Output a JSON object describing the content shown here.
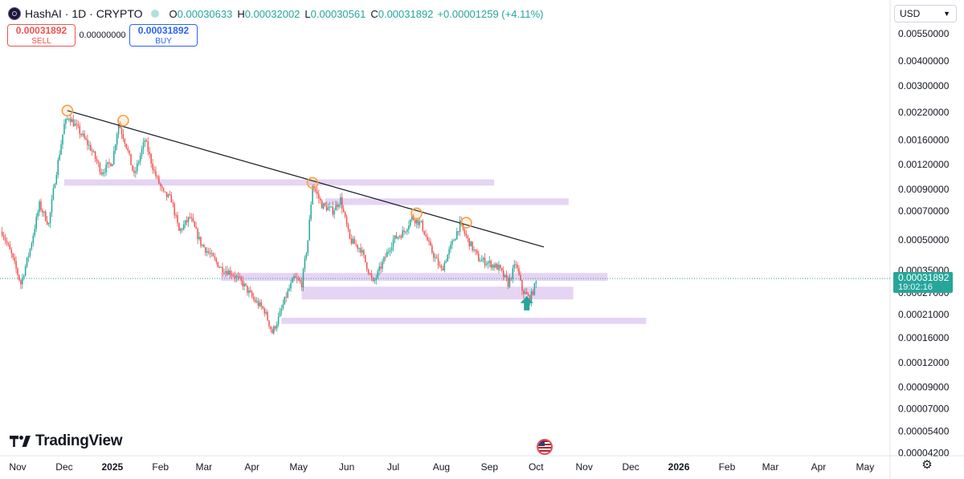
{
  "header": {
    "title": "HashAI · 1D · CRYPTO",
    "ohlc": [
      {
        "k": "O",
        "v": "0.00030633"
      },
      {
        "k": "H",
        "v": "0.00032002"
      },
      {
        "k": "L",
        "v": "0.00030561"
      },
      {
        "k": "C",
        "v": "0.00031892"
      }
    ],
    "change": "+0.00001259 (+4.11%)"
  },
  "trade": {
    "sell_price": "0.00031892",
    "sell_label": "SELL",
    "spread": "0.00000000",
    "buy_price": "0.00031892",
    "buy_label": "BUY"
  },
  "currency": "USD",
  "last_price": {
    "value": "0.00031892",
    "countdown": "19:02:16"
  },
  "brand": "TradingView",
  "colors": {
    "up": "#26a69a",
    "down": "#ef5350",
    "zone": "#e1cdf1",
    "trendline": "#131722",
    "marker": "#f5a142"
  },
  "chart_data": {
    "type": "candlestick",
    "symbol": "HashAI",
    "interval": "1D",
    "y_scale": "log",
    "yticks": [
      0.0055,
      0.004,
      0.003,
      0.0022,
      0.0016,
      0.0012,
      0.0009,
      0.0007,
      0.0005,
      0.00035,
      0.00027,
      0.00021,
      0.00016,
      0.00012,
      9e-05,
      7e-05,
      5.4e-05,
      4.2e-05
    ],
    "ytick_labels": [
      "0.00550000",
      "0.00400000",
      "0.00300000",
      "0.00220000",
      "0.00160000",
      "0.00120000",
      "0.00090000",
      "0.00070000",
      "0.00050000",
      "0.00035000",
      "0.00027000",
      "0.00021000",
      "0.00016000",
      "0.00012000",
      "0.00009000",
      "0.00007000",
      "0.00005400",
      "0.00004200"
    ],
    "xticks": [
      "Nov",
      "Dec",
      "2025",
      "Feb",
      "Mar",
      "Apr",
      "May",
      "Jun",
      "Jul",
      "Aug",
      "Sep",
      "Oct",
      "Nov",
      "Dec",
      "2026",
      "Feb",
      "Mar",
      "Apr",
      "May"
    ],
    "x_bold": [
      "2025",
      "2026"
    ],
    "price_path": [
      [
        "2024-10-22",
        0.00055
      ],
      [
        "2024-10-28",
        0.00042
      ],
      [
        "2024-11-03",
        0.0003
      ],
      [
        "2024-11-09",
        0.00045
      ],
      [
        "2024-11-15",
        0.00075
      ],
      [
        "2024-11-21",
        0.0006
      ],
      [
        "2024-11-25",
        0.001
      ],
      [
        "2024-12-01",
        0.0019
      ],
      [
        "2024-12-04",
        0.0021
      ],
      [
        "2024-12-10",
        0.0018
      ],
      [
        "2024-12-18",
        0.00145
      ],
      [
        "2024-12-25",
        0.0011
      ],
      [
        "2025-01-01",
        0.00125
      ],
      [
        "2025-01-05",
        0.00195
      ],
      [
        "2025-01-10",
        0.0015
      ],
      [
        "2025-01-15",
        0.00105
      ],
      [
        "2025-01-22",
        0.0016
      ],
      [
        "2025-01-28",
        0.0011
      ],
      [
        "2025-02-03",
        0.00085
      ],
      [
        "2025-02-08",
        0.0008
      ],
      [
        "2025-02-13",
        0.00055
      ],
      [
        "2025-02-20",
        0.00065
      ],
      [
        "2025-02-27",
        0.00048
      ],
      [
        "2025-03-05",
        0.00042
      ],
      [
        "2025-03-12",
        0.00036
      ],
      [
        "2025-03-19",
        0.00034
      ],
      [
        "2025-03-26",
        0.0003
      ],
      [
        "2025-04-02",
        0.00025
      ],
      [
        "2025-04-09",
        0.00022
      ],
      [
        "2025-04-14",
        0.00017
      ],
      [
        "2025-04-18",
        0.0002
      ],
      [
        "2025-04-23",
        0.00026
      ],
      [
        "2025-04-28",
        0.00032
      ],
      [
        "2025-05-03",
        0.0003
      ],
      [
        "2025-05-07",
        0.0005
      ],
      [
        "2025-05-10",
        0.00095
      ],
      [
        "2025-05-16",
        0.00075
      ],
      [
        "2025-05-23",
        0.0007
      ],
      [
        "2025-05-28",
        0.0008
      ],
      [
        "2025-06-03",
        0.0005
      ],
      [
        "2025-06-10",
        0.00045
      ],
      [
        "2025-06-18",
        0.0003
      ],
      [
        "2025-06-24",
        0.00038
      ],
      [
        "2025-07-01",
        0.0005
      ],
      [
        "2025-07-08",
        0.00055
      ],
      [
        "2025-07-13",
        0.00065
      ],
      [
        "2025-07-19",
        0.0006
      ],
      [
        "2025-07-25",
        0.00045
      ],
      [
        "2025-08-01",
        0.00035
      ],
      [
        "2025-08-08",
        0.00048
      ],
      [
        "2025-08-13",
        0.0006
      ],
      [
        "2025-08-18",
        0.0005
      ],
      [
        "2025-08-25",
        0.0004
      ],
      [
        "2025-09-01",
        0.00038
      ],
      [
        "2025-09-07",
        0.00036
      ],
      [
        "2025-09-13",
        0.0003
      ],
      [
        "2025-09-18",
        0.00038
      ],
      [
        "2025-09-22",
        0.00028
      ],
      [
        "2025-09-27",
        0.00025
      ],
      [
        "2025-10-02",
        0.00031892
      ]
    ],
    "trendline": [
      [
        "2024-12-03",
        0.00225
      ],
      [
        "2025-10-06",
        0.00046
      ]
    ],
    "touch_points": [
      [
        "2024-12-03",
        0.00225
      ],
      [
        "2025-01-08",
        0.002
      ],
      [
        "2025-05-10",
        0.00097
      ],
      [
        "2025-07-16",
        0.00068
      ],
      [
        "2025-08-17",
        0.00061
      ]
    ],
    "zones": [
      {
        "from": "2024-12-01",
        "to": "2025-09-04",
        "low": 0.00094,
        "high": 0.00101
      },
      {
        "from": "2025-05-18",
        "to": "2025-10-22",
        "low": 0.00075,
        "high": 0.00081
      },
      {
        "from": "2025-03-12",
        "to": "2025-11-16",
        "low": 0.00031,
        "high": 0.00034
      },
      {
        "from": "2025-05-03",
        "to": "2025-10-25",
        "low": 0.00025,
        "high": 0.00029
      },
      {
        "from": "2025-04-20",
        "to": "2025-12-11",
        "low": 0.000188,
        "high": 0.000202
      }
    ],
    "arrow": [
      "2025-09-25",
      0.00022
    ],
    "last_price": 0.00031892
  }
}
